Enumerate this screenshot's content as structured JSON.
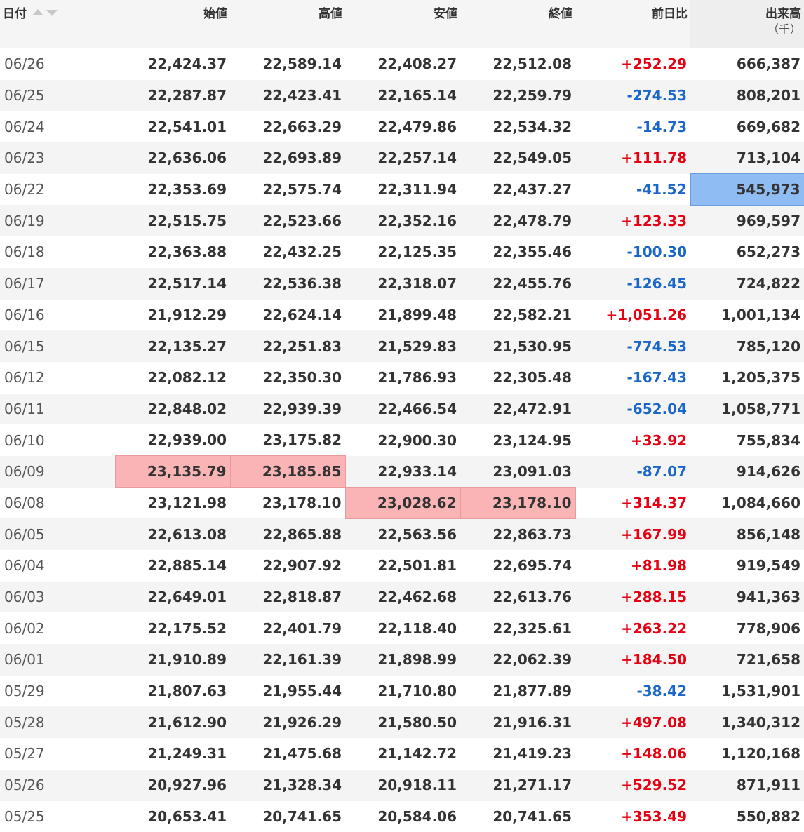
{
  "headers": {
    "date": "日付",
    "open": "始値",
    "high": "高値",
    "low": "安値",
    "close": "終値",
    "change": "前日比",
    "volume": "出来高",
    "volume_unit": "（千）"
  },
  "colors": {
    "up": "#e60012",
    "down": "#1a66c9",
    "highlight_red": "#fbb4b6",
    "highlight_blue": "#8fbcf2"
  },
  "rows": [
    {
      "date": "06/26",
      "open": "22,424.37",
      "high": "22,589.14",
      "low": "22,408.27",
      "close": "22,512.08",
      "change": "+252.29",
      "volume": "666,387"
    },
    {
      "date": "06/25",
      "open": "22,287.87",
      "high": "22,423.41",
      "low": "22,165.14",
      "close": "22,259.79",
      "change": "-274.53",
      "volume": "808,201"
    },
    {
      "date": "06/24",
      "open": "22,541.01",
      "high": "22,663.29",
      "low": "22,479.86",
      "close": "22,534.32",
      "change": "-14.73",
      "volume": "669,682"
    },
    {
      "date": "06/23",
      "open": "22,636.06",
      "high": "22,693.89",
      "low": "22,257.14",
      "close": "22,549.05",
      "change": "+111.78",
      "volume": "713,104"
    },
    {
      "date": "06/22",
      "open": "22,353.69",
      "high": "22,575.74",
      "low": "22,311.94",
      "close": "22,437.27",
      "change": "-41.52",
      "volume": "545,973"
    },
    {
      "date": "06/19",
      "open": "22,515.75",
      "high": "22,523.66",
      "low": "22,352.16",
      "close": "22,478.79",
      "change": "+123.33",
      "volume": "969,597"
    },
    {
      "date": "06/18",
      "open": "22,363.88",
      "high": "22,432.25",
      "low": "22,125.35",
      "close": "22,355.46",
      "change": "-100.30",
      "volume": "652,273"
    },
    {
      "date": "06/17",
      "open": "22,517.14",
      "high": "22,536.38",
      "low": "22,318.07",
      "close": "22,455.76",
      "change": "-126.45",
      "volume": "724,822"
    },
    {
      "date": "06/16",
      "open": "21,912.29",
      "high": "22,624.14",
      "low": "21,899.48",
      "close": "22,582.21",
      "change": "+1,051.26",
      "volume": "1,001,134"
    },
    {
      "date": "06/15",
      "open": "22,135.27",
      "high": "22,251.83",
      "low": "21,529.83",
      "close": "21,530.95",
      "change": "-774.53",
      "volume": "785,120"
    },
    {
      "date": "06/12",
      "open": "22,082.12",
      "high": "22,350.30",
      "low": "21,786.93",
      "close": "22,305.48",
      "change": "-167.43",
      "volume": "1,205,375"
    },
    {
      "date": "06/11",
      "open": "22,848.02",
      "high": "22,939.39",
      "low": "22,466.54",
      "close": "22,472.91",
      "change": "-652.04",
      "volume": "1,058,771"
    },
    {
      "date": "06/10",
      "open": "22,939.00",
      "high": "23,175.82",
      "low": "22,900.30",
      "close": "23,124.95",
      "change": "+33.92",
      "volume": "755,834"
    },
    {
      "date": "06/09",
      "open": "23,135.79",
      "high": "23,185.85",
      "low": "22,933.14",
      "close": "23,091.03",
      "change": "-87.07",
      "volume": "914,626"
    },
    {
      "date": "06/08",
      "open": "23,121.98",
      "high": "23,178.10",
      "low": "23,028.62",
      "close": "23,178.10",
      "change": "+314.37",
      "volume": "1,084,660"
    },
    {
      "date": "06/05",
      "open": "22,613.08",
      "high": "22,865.88",
      "low": "22,563.56",
      "close": "22,863.73",
      "change": "+167.99",
      "volume": "856,148"
    },
    {
      "date": "06/04",
      "open": "22,885.14",
      "high": "22,907.92",
      "low": "22,501.81",
      "close": "22,695.74",
      "change": "+81.98",
      "volume": "919,549"
    },
    {
      "date": "06/03",
      "open": "22,649.01",
      "high": "22,818.87",
      "low": "22,462.68",
      "close": "22,613.76",
      "change": "+288.15",
      "volume": "941,363"
    },
    {
      "date": "06/02",
      "open": "22,175.52",
      "high": "22,401.79",
      "low": "22,118.40",
      "close": "22,325.61",
      "change": "+263.22",
      "volume": "778,906"
    },
    {
      "date": "06/01",
      "open": "21,910.89",
      "high": "22,161.39",
      "low": "21,898.99",
      "close": "22,062.39",
      "change": "+184.50",
      "volume": "721,658"
    },
    {
      "date": "05/29",
      "open": "21,807.63",
      "high": "21,955.44",
      "low": "21,710.80",
      "close": "21,877.89",
      "change": "-38.42",
      "volume": "1,531,901"
    },
    {
      "date": "05/28",
      "open": "21,612.90",
      "high": "21,926.29",
      "low": "21,580.50",
      "close": "21,916.31",
      "change": "+497.08",
      "volume": "1,340,312"
    },
    {
      "date": "05/27",
      "open": "21,249.31",
      "high": "21,475.68",
      "low": "21,142.72",
      "close": "21,419.23",
      "change": "+148.06",
      "volume": "1,120,168"
    },
    {
      "date": "05/26",
      "open": "20,927.96",
      "high": "21,328.34",
      "low": "20,918.11",
      "close": "21,271.17",
      "change": "+529.52",
      "volume": "871,911"
    },
    {
      "date": "05/25",
      "open": "20,653.41",
      "high": "20,741.65",
      "low": "20,584.06",
      "close": "20,741.65",
      "change": "+353.49",
      "volume": "550,882"
    }
  ],
  "highlights": [
    {
      "row": 4,
      "col": "volume",
      "color": "blue"
    },
    {
      "row": 13,
      "col": "open",
      "color": "red"
    },
    {
      "row": 13,
      "col": "high",
      "color": "red"
    },
    {
      "row": 14,
      "col": "low",
      "color": "red"
    },
    {
      "row": 14,
      "col": "close",
      "color": "red"
    }
  ]
}
